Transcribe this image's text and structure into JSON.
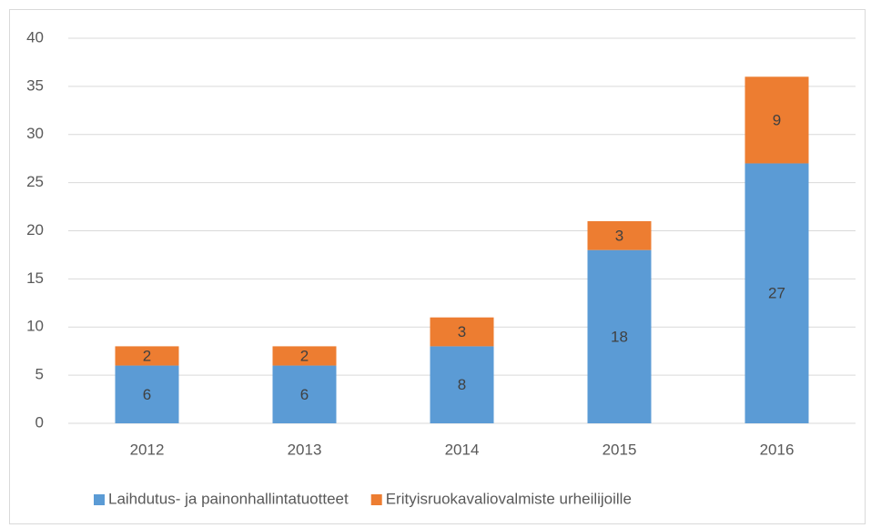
{
  "chart_data": {
    "type": "stacked_bar",
    "categories": [
      "2012",
      "2013",
      "2014",
      "2015",
      "2016"
    ],
    "series": [
      {
        "name": "Laihdutus- ja painonhallintatuotteet",
        "color": "#5b9bd5",
        "values": [
          6,
          6,
          8,
          18,
          27
        ]
      },
      {
        "name": "Erityisruokavaliovalmiste urheilijoille",
        "color": "#ed7d31",
        "values": [
          2,
          2,
          3,
          3,
          9
        ]
      }
    ],
    "ylim": [
      0,
      40
    ],
    "yticks": [
      0,
      5,
      10,
      15,
      20,
      25,
      30,
      35,
      40
    ],
    "grid": true,
    "legend": "bottom"
  }
}
